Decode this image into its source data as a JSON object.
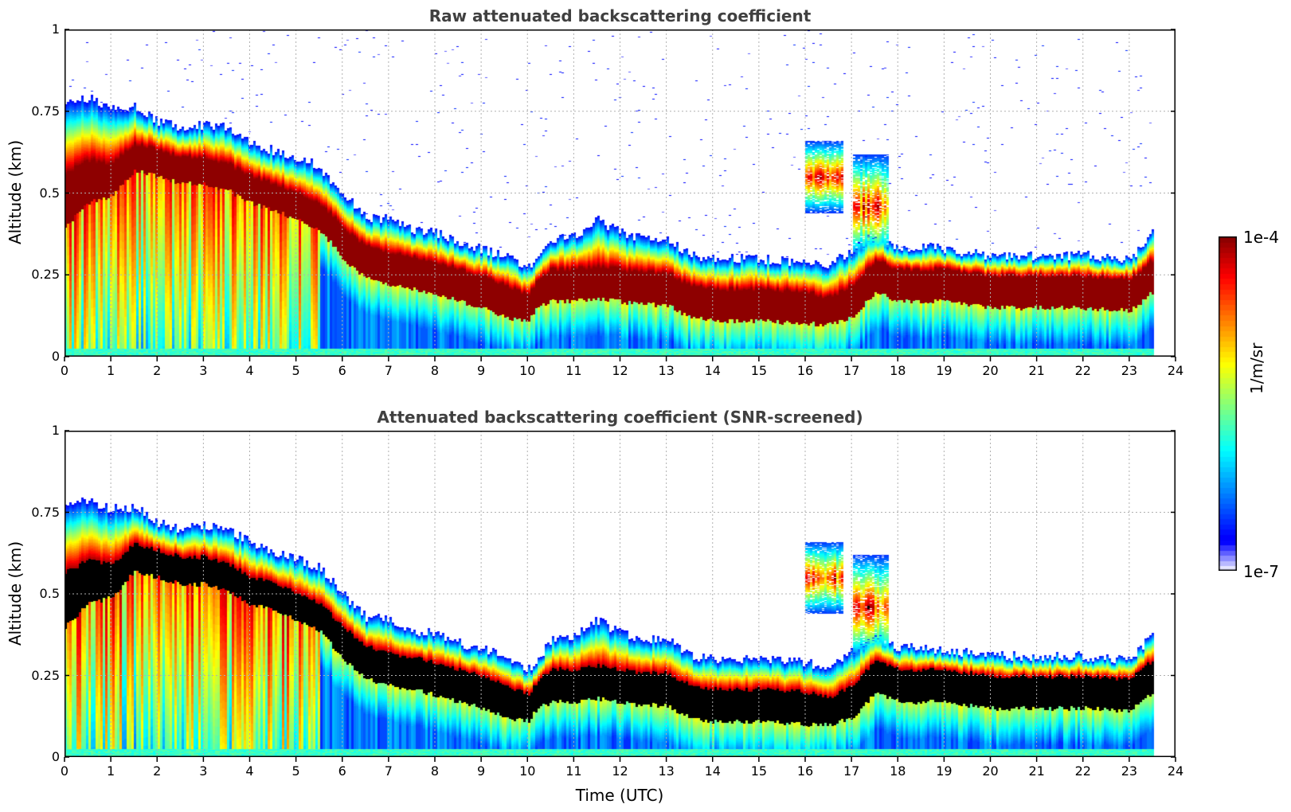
{
  "chart_data": [
    {
      "type": "heatmap",
      "title": "Raw attenuated backscattering coefficient",
      "xlabel": "",
      "ylabel": "Altitude (km)",
      "xlim": [
        0,
        24
      ],
      "ylim": [
        0,
        1
      ],
      "x_ticks": [
        "0",
        "1",
        "2",
        "3",
        "4",
        "5",
        "6",
        "7",
        "8",
        "9",
        "10",
        "11",
        "12",
        "13",
        "14",
        "15",
        "16",
        "17",
        "18",
        "19",
        "20",
        "21",
        "22",
        "23",
        "24"
      ],
      "y_ticks": [
        "0",
        "0.25",
        "0.5",
        "0.75",
        "1"
      ],
      "grid": true,
      "screened": false
    },
    {
      "type": "heatmap",
      "title": "Attenuated backscattering coefficient (SNR-screened)",
      "xlabel": "Time (UTC)",
      "ylabel": "Altitude (km)",
      "xlim": [
        0,
        24
      ],
      "ylim": [
        0,
        1
      ],
      "x_ticks": [
        "0",
        "1",
        "2",
        "3",
        "4",
        "5",
        "6",
        "7",
        "8",
        "9",
        "10",
        "11",
        "12",
        "13",
        "14",
        "15",
        "16",
        "17",
        "18",
        "19",
        "20",
        "21",
        "22",
        "23",
        "24"
      ],
      "y_ticks": [
        "0",
        "0.25",
        "0.5",
        "0.75",
        "1"
      ],
      "grid": true,
      "screened": true
    }
  ],
  "layer_profile": {
    "time_h": [
      0.0,
      0.5,
      1.0,
      1.5,
      2.0,
      2.5,
      3.0,
      3.5,
      4.0,
      4.5,
      5.0,
      5.5,
      6.0,
      6.5,
      7.0,
      7.5,
      8.0,
      8.5,
      9.0,
      9.5,
      10.0,
      10.2,
      10.5,
      11.0,
      11.5,
      12.0,
      12.5,
      13.0,
      13.5,
      14.0,
      15.0,
      16.0,
      16.5,
      17.0,
      17.5,
      18.0,
      18.5,
      19.0,
      20.0,
      21.0,
      22.0,
      23.0,
      23.5
    ],
    "top_km": [
      0.78,
      0.79,
      0.76,
      0.77,
      0.72,
      0.7,
      0.71,
      0.7,
      0.66,
      0.63,
      0.61,
      0.58,
      0.5,
      0.43,
      0.42,
      0.39,
      0.38,
      0.35,
      0.33,
      0.31,
      0.27,
      0.3,
      0.36,
      0.37,
      0.42,
      0.38,
      0.36,
      0.36,
      0.31,
      0.3,
      0.3,
      0.29,
      0.28,
      0.33,
      0.38,
      0.33,
      0.34,
      0.33,
      0.31,
      0.31,
      0.31,
      0.3,
      0.38
    ],
    "core_km": [
      0.5,
      0.55,
      0.55,
      0.62,
      0.6,
      0.58,
      0.58,
      0.56,
      0.52,
      0.5,
      0.47,
      0.44,
      0.36,
      0.3,
      0.28,
      0.27,
      0.25,
      0.23,
      0.21,
      0.18,
      0.16,
      0.2,
      0.23,
      0.23,
      0.24,
      0.23,
      0.22,
      0.22,
      0.18,
      0.17,
      0.17,
      0.16,
      0.15,
      0.18,
      0.26,
      0.23,
      0.23,
      0.23,
      0.21,
      0.21,
      0.21,
      0.2,
      0.26
    ],
    "core_half_km": [
      0.1,
      0.08,
      0.06,
      0.05,
      0.05,
      0.05,
      0.05,
      0.05,
      0.05,
      0.05,
      0.05,
      0.05,
      0.06,
      0.06,
      0.06,
      0.06,
      0.06,
      0.06,
      0.06,
      0.06,
      0.05,
      0.05,
      0.06,
      0.06,
      0.06,
      0.06,
      0.06,
      0.06,
      0.06,
      0.06,
      0.06,
      0.06,
      0.05,
      0.06,
      0.06,
      0.06,
      0.06,
      0.06,
      0.06,
      0.06,
      0.06,
      0.06,
      0.06
    ],
    "data_end_h": 23.5,
    "elevated_clouds": [
      {
        "t_start": 16.0,
        "t_end": 16.8,
        "base_km": 0.44,
        "top_km": 0.66
      },
      {
        "t_start": 17.0,
        "t_end": 17.8,
        "base_km": 0.3,
        "top_km": 0.62
      }
    ]
  },
  "colorbar": {
    "colormap": "jet",
    "max_label": "1e-4",
    "min_label": "1e-7",
    "units_label": "1/m/sr",
    "max_value": 0.0001,
    "min_value": 1e-07,
    "scale": "log",
    "levels": 64
  },
  "colors": {
    "title": "#404040",
    "grid": "#b0b0b0",
    "screened_core": "#000000"
  }
}
